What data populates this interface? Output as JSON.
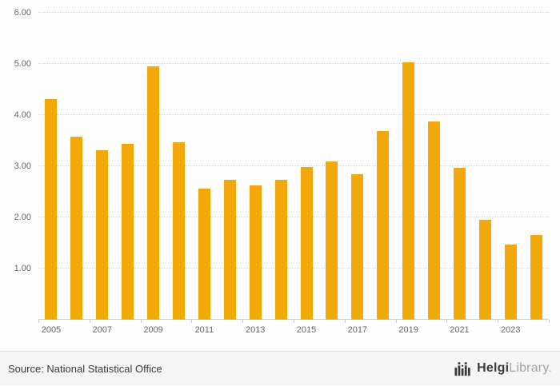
{
  "chart_data": {
    "type": "bar",
    "categories": [
      "2005",
      "2006",
      "2007",
      "2008",
      "2009",
      "2010",
      "2011",
      "2012",
      "2013",
      "2014",
      "2015",
      "2016",
      "2017",
      "2018",
      "2019",
      "2020",
      "2021",
      "2022",
      "2023",
      "2024"
    ],
    "values": [
      4.32,
      3.58,
      3.32,
      3.43,
      4.96,
      3.47,
      2.57,
      2.73,
      2.63,
      2.73,
      2.99,
      3.1,
      2.84,
      3.69,
      5.03,
      3.88,
      2.97,
      1.96,
      1.47,
      1.65
    ],
    "title": "",
    "xlabel": "",
    "ylabel": "",
    "ylim": [
      0,
      6
    ],
    "yticks": [
      {
        "value": 1,
        "label": "1.00"
      },
      {
        "value": 2,
        "label": "2.00"
      },
      {
        "value": 3,
        "label": "3.00"
      },
      {
        "value": 4,
        "label": "4.00"
      },
      {
        "value": 5,
        "label": "5.00"
      },
      {
        "value": 6,
        "label": "6.00"
      }
    ],
    "xtick_labels": [
      "2005",
      "2007",
      "2009",
      "2011",
      "2013",
      "2015",
      "2017",
      "2019",
      "2021",
      "2023"
    ],
    "label_every": 2,
    "grid": true,
    "legend_position": "none",
    "bar_color": "#f3a809",
    "grid_color": "#d6d6d6",
    "axis_color": "#cccccc",
    "tick_text_color": "#666666"
  },
  "footer": {
    "source": "Source: National Statistical Office",
    "logo_bold": "Helgi",
    "logo_light": "Library."
  }
}
